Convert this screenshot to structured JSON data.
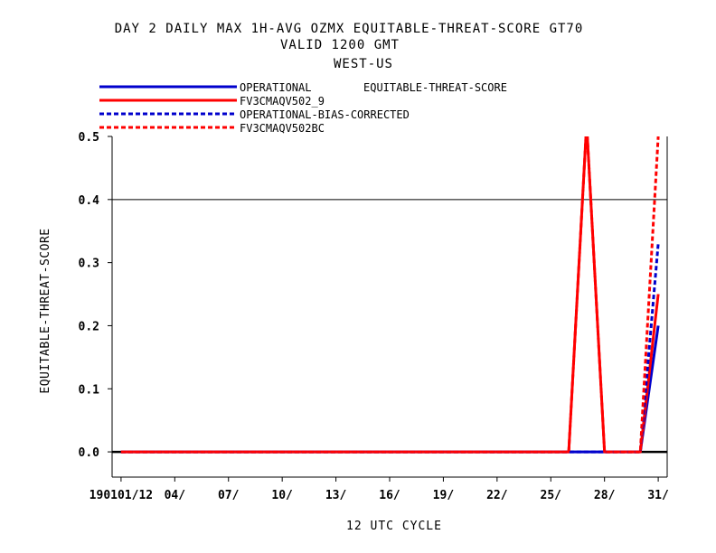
{
  "chart_data": {
    "type": "line",
    "title_lines": [
      "DAY 2 DAILY MAX   1H-AVG OZMX EQUITABLE-THREAT-SCORE GT70",
      "VALID 1200 GMT",
      "WEST-US"
    ],
    "ylabel": "EQUITABLE-THREAT-SCORE",
    "xlabel": "12 UTC CYCLE",
    "legend_title": "EQUITABLE-THREAT-SCORE",
    "ylim": [
      -0.04,
      0.5
    ],
    "yticks": [
      "0.0",
      "0.1",
      "0.2",
      "0.3",
      "0.4",
      "0.5"
    ],
    "ytick_values": [
      0.0,
      0.1,
      0.2,
      0.3,
      0.4,
      0.5
    ],
    "reference_line": 0.4,
    "xlim": [
      0.5,
      31.5
    ],
    "xtick_values": [
      1,
      4,
      7,
      10,
      13,
      16,
      19,
      22,
      25,
      28,
      31
    ],
    "xtick_labels": [
      "190101/12",
      "04/",
      "07/",
      "10/",
      "13/",
      "16/",
      "19/",
      "22/",
      "25/",
      "28/",
      "31/"
    ],
    "series": [
      {
        "name": "OPERATIONAL",
        "color": "#0000cc",
        "dashed": false,
        "x": [
          1,
          2,
          3,
          4,
          5,
          6,
          7,
          8,
          9,
          10,
          11,
          12,
          13,
          14,
          15,
          16,
          17,
          18,
          19,
          20,
          21,
          22,
          23,
          24,
          25,
          26,
          27,
          28,
          29,
          30,
          31
        ],
        "y": [
          0,
          0,
          0,
          0,
          0,
          0,
          0,
          0,
          0,
          0,
          0,
          0,
          0,
          0,
          0,
          0,
          0,
          0,
          0,
          0,
          0,
          0,
          0,
          0,
          0,
          0,
          0,
          0,
          0,
          0,
          0.2
        ]
      },
      {
        "name": "FV3CMAQV502_9",
        "color": "#ff0000",
        "dashed": false,
        "x": [
          1,
          2,
          3,
          4,
          5,
          6,
          7,
          8,
          9,
          10,
          11,
          12,
          13,
          14,
          15,
          16,
          17,
          18,
          19,
          20,
          21,
          22,
          23,
          24,
          25,
          26,
          27,
          28,
          29,
          30,
          31
        ],
        "y": [
          0,
          0,
          0,
          0,
          0,
          0,
          0,
          0,
          0,
          0,
          0,
          0,
          0,
          0,
          0,
          0,
          0,
          0,
          0,
          0,
          0,
          0,
          0,
          0,
          0,
          0,
          0.52,
          0,
          0,
          0,
          0.25
        ]
      },
      {
        "name": "OPERATIONAL-BIAS-CORRECTED",
        "color": "#0000cc",
        "dashed": true,
        "x": [
          1,
          2,
          3,
          4,
          5,
          6,
          7,
          8,
          9,
          10,
          11,
          12,
          13,
          14,
          15,
          16,
          17,
          18,
          19,
          20,
          21,
          22,
          23,
          24,
          25,
          26,
          27,
          28,
          29,
          30,
          31
        ],
        "y": [
          0,
          0,
          0,
          0,
          0,
          0,
          0,
          0,
          0,
          0,
          0,
          0,
          0,
          0,
          0,
          0,
          0,
          0,
          0,
          0,
          0,
          0,
          0,
          0,
          0,
          0,
          0,
          0,
          0,
          0,
          0.33
        ]
      },
      {
        "name": "FV3CMAQV502BC",
        "color": "#ff0000",
        "dashed": true,
        "x": [
          1,
          2,
          3,
          4,
          5,
          6,
          7,
          8,
          9,
          10,
          11,
          12,
          13,
          14,
          15,
          16,
          17,
          18,
          19,
          20,
          21,
          22,
          23,
          24,
          25,
          26,
          27,
          28,
          29,
          30,
          31
        ],
        "y": [
          0,
          0,
          0,
          0,
          0,
          0,
          0,
          0,
          0,
          0,
          0,
          0,
          0,
          0,
          0,
          0,
          0,
          0,
          0,
          0,
          0,
          0,
          0,
          0,
          0,
          0,
          0.52,
          0,
          0,
          0,
          0.5
        ]
      }
    ]
  }
}
